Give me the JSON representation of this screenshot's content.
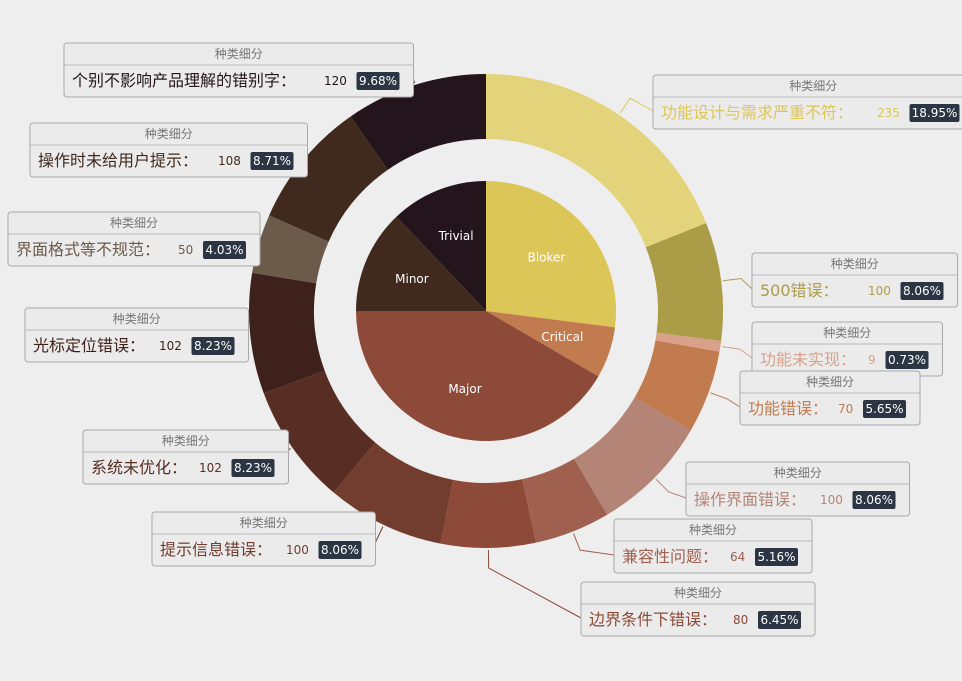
{
  "chart_data": {
    "type": "pie",
    "inner": {
      "series_name": "",
      "slices": [
        {
          "name": "Bloker",
          "value": 335,
          "color": "#dcc658"
        },
        {
          "name": "Critical",
          "value": 79,
          "color": "#c27a4f"
        },
        {
          "name": "Major",
          "value": 516,
          "color": "#8d4a38"
        },
        {
          "name": "Minor",
          "value": 160,
          "color": "#3f2a1d"
        },
        {
          "name": "Trivial",
          "value": 150,
          "color": "#23151b"
        }
      ]
    },
    "outer": {
      "tooltip_title": "种类细分",
      "slices": [
        {
          "name": "功能设计与需求严重不符",
          "value": 235,
          "percent": "18.95%",
          "color": "#e3d47c",
          "label_color": "#dcc658"
        },
        {
          "name": "500错误",
          "value": 100,
          "percent": "8.06%",
          "color": "#ab9c47",
          "label_color": "#ab9c47"
        },
        {
          "name": "功能未实现",
          "value": 9,
          "percent": "0.73%",
          "color": "#d9a08a",
          "label_color": "#d9a08a"
        },
        {
          "name": "功能错误",
          "value": 70,
          "percent": "5.65%",
          "color": "#c27a4f",
          "label_color": "#c27a4f"
        },
        {
          "name": "操作界面错误",
          "value": 100,
          "percent": "8.06%",
          "color": "#b48477",
          "label_color": "#b48477"
        },
        {
          "name": "兼容性问题",
          "value": 64,
          "percent": "5.16%",
          "color": "#a0604f",
          "label_color": "#a0604f"
        },
        {
          "name": "边界条件下错误",
          "value": 80,
          "percent": "6.45%",
          "color": "#8d4a38",
          "label_color": "#8d4a38"
        },
        {
          "name": "提示信息错误",
          "value": 100,
          "percent": "8.06%",
          "color": "#723c2e",
          "label_color": "#723c2e"
        },
        {
          "name": "系统未优化",
          "value": 102,
          "percent": "8.23%",
          "color": "#582d23",
          "label_color": "#582d23"
        },
        {
          "name": "光标定位错误",
          "value": 102,
          "percent": "8.23%",
          "color": "#3f211b",
          "label_color": "#3f211b"
        },
        {
          "name": "界面格式等不规范",
          "value": 50,
          "percent": "4.03%",
          "color": "#6c5a4b",
          "label_color": "#6c5a4b"
        },
        {
          "name": "操作时未给用户提示",
          "value": 108,
          "percent": "8.71%",
          "color": "#3f2a1d",
          "label_color": "#3f2a1d"
        },
        {
          "name": "个别不影响产品理解的错别字",
          "value": 120,
          "percent": "9.68%",
          "color": "#23151b",
          "label_color": "#23151b"
        }
      ]
    }
  }
}
